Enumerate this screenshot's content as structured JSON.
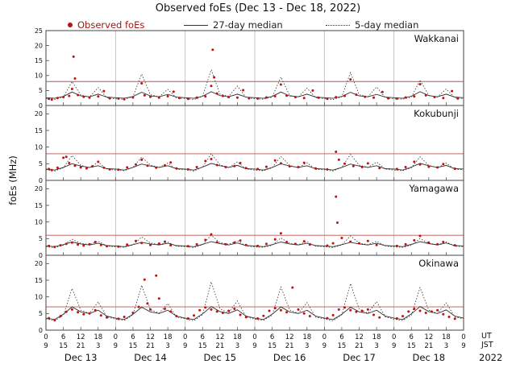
{
  "title": "Observed foEs (Dec 13 - Dec 18, 2022)",
  "legend": {
    "observed": "Observed foEs",
    "median27": "27-day median",
    "median5": "5-day median"
  },
  "axis": {
    "ylabel": "foEs (MHz)",
    "ut_label": "UT",
    "jst_label": "JST",
    "year": "2022",
    "days": [
      "Dec 13",
      "Dec 14",
      "Dec 15",
      "Dec 16",
      "Dec 17",
      "Dec 18"
    ],
    "ut_ticks": [
      "0",
      "6",
      "12",
      "18",
      "0",
      "6",
      "12",
      "18",
      "0",
      "6",
      "12",
      "18",
      "0",
      "6",
      "12",
      "18",
      "0",
      "6",
      "12",
      "18",
      "0",
      "6",
      "12",
      "18",
      "0"
    ],
    "jst_ticks": [
      "9",
      "15",
      "21",
      "3",
      "9",
      "15",
      "21",
      "3",
      "9",
      "15",
      "21",
      "3",
      "9",
      "15",
      "21",
      "3",
      "9",
      "15",
      "21",
      "3",
      "9",
      "15",
      "21",
      "3",
      "9"
    ]
  },
  "colors": {
    "observed": "#c01010",
    "median": "#303030",
    "threshold": "#c05050",
    "grid": "#b5b5b5",
    "border": "#444444"
  },
  "chart_data": [
    {
      "type": "scatter",
      "name": "Wakkanai",
      "ymax": 25,
      "yticks": [
        0,
        5,
        10,
        15,
        20,
        25
      ],
      "threshold": 8,
      "x_step": 3,
      "median5": [
        2.3,
        2.0,
        2.8,
        8.0,
        3.5,
        2.8,
        6.0,
        2.6,
        2.2,
        2.1,
        2.9,
        10.5,
        3.6,
        2.9,
        5.4,
        2.5,
        2.3,
        2.0,
        3.0,
        12.0,
        3.8,
        3.0,
        6.5,
        2.7,
        2.2,
        2.1,
        2.8,
        9.5,
        3.4,
        2.8,
        5.8,
        2.6,
        2.3,
        2.0,
        2.9,
        11.0,
        3.6,
        2.9,
        6.2,
        2.6,
        2.2,
        2.1,
        2.8,
        8.5,
        3.4,
        2.8,
        5.5,
        2.5,
        2.3
      ],
      "median27": [
        2.6,
        2.4,
        3.0,
        4.5,
        3.2,
        2.9,
        3.8,
        2.8,
        2.6,
        2.4,
        3.0,
        4.4,
        3.2,
        2.9,
        3.7,
        2.8,
        2.6,
        2.4,
        3.1,
        4.6,
        3.3,
        2.9,
        3.8,
        2.8,
        2.6,
        2.4,
        3.0,
        4.5,
        3.2,
        2.9,
        3.8,
        2.8,
        2.6,
        2.4,
        3.0,
        4.4,
        3.2,
        2.9,
        3.7,
        2.8,
        2.6,
        2.4,
        3.1,
        4.6,
        3.3,
        2.9,
        3.8,
        2.8,
        2.6
      ],
      "observed": [
        [
          1,
          2.2
        ],
        [
          2,
          2.0
        ],
        [
          4,
          2.5
        ],
        [
          6,
          2.8
        ],
        [
          8,
          3.2
        ],
        [
          9,
          5.5
        ],
        [
          9.5,
          16.3
        ],
        [
          10,
          9.0
        ],
        [
          11,
          3.5
        ],
        [
          13,
          2.9
        ],
        [
          15,
          2.6
        ],
        [
          18,
          3.0
        ],
        [
          20,
          4.8
        ],
        [
          22,
          2.4
        ],
        [
          25,
          2.3
        ],
        [
          27,
          2.1
        ],
        [
          30,
          2.7
        ],
        [
          33,
          7.4
        ],
        [
          34,
          3.4
        ],
        [
          36,
          2.9
        ],
        [
          39,
          2.6
        ],
        [
          42,
          3.1
        ],
        [
          44,
          4.6
        ],
        [
          46,
          2.5
        ],
        [
          49,
          2.2
        ],
        [
          52,
          2.6
        ],
        [
          55,
          3.0
        ],
        [
          57,
          6.5
        ],
        [
          57.5,
          18.6
        ],
        [
          58,
          9.4
        ],
        [
          59,
          4.0
        ],
        [
          61,
          3.2
        ],
        [
          63,
          2.8
        ],
        [
          66,
          2.6
        ],
        [
          68,
          5.1
        ],
        [
          70,
          2.4
        ],
        [
          73,
          2.3
        ],
        [
          76,
          2.7
        ],
        [
          79,
          3.1
        ],
        [
          81,
          7.0
        ],
        [
          83,
          3.3
        ],
        [
          86,
          2.8
        ],
        [
          89,
          2.5
        ],
        [
          92,
          5.0
        ],
        [
          94,
          2.6
        ],
        [
          97,
          2.2
        ],
        [
          100,
          2.8
        ],
        [
          103,
          3.2
        ],
        [
          105,
          8.7
        ],
        [
          107,
          3.6
        ],
        [
          110,
          2.9
        ],
        [
          113,
          2.6
        ],
        [
          116,
          4.5
        ],
        [
          118,
          2.4
        ],
        [
          121,
          2.3
        ],
        [
          124,
          2.7
        ],
        [
          127,
          3.0
        ],
        [
          129,
          7.1
        ],
        [
          131,
          3.4
        ],
        [
          134,
          2.8
        ],
        [
          137,
          2.5
        ],
        [
          140,
          4.8
        ],
        [
          142,
          2.3
        ]
      ]
    },
    {
      "type": "scatter",
      "name": "Kokubunji",
      "ymax": 22.5,
      "yticks": [
        0,
        5,
        10,
        15,
        20
      ],
      "threshold": 8,
      "x_step": 3,
      "median5": [
        3.2,
        2.8,
        3.8,
        7.5,
        4.5,
        3.8,
        5.5,
        3.4,
        3.1,
        2.9,
        3.9,
        7.0,
        4.6,
        3.9,
        5.2,
        3.3,
        3.2,
        2.8,
        4.0,
        8.0,
        4.7,
        3.8,
        5.6,
        3.4,
        3.1,
        2.9,
        3.8,
        7.2,
        4.5,
        3.8,
        5.3,
        3.3,
        3.2,
        2.8,
        3.9,
        7.8,
        4.6,
        3.9,
        5.5,
        3.4,
        3.1,
        2.9,
        3.8,
        7.1,
        4.5,
        3.8,
        5.2,
        3.3,
        3.2
      ],
      "median27": [
        3.4,
        3.1,
        3.9,
        5.0,
        4.3,
        3.9,
        4.4,
        3.5,
        3.4,
        3.1,
        3.9,
        4.9,
        4.3,
        3.9,
        4.4,
        3.5,
        3.4,
        3.1,
        4.0,
        5.1,
        4.4,
        3.9,
        4.5,
        3.5,
        3.4,
        3.1,
        3.9,
        5.0,
        4.3,
        3.9,
        4.4,
        3.5,
        3.4,
        3.1,
        3.9,
        4.9,
        4.3,
        3.9,
        4.4,
        3.5,
        3.4,
        3.1,
        4.0,
        5.1,
        4.4,
        3.9,
        4.5,
        3.5,
        3.4
      ],
      "observed": [
        [
          1,
          3.4
        ],
        [
          2,
          3.1
        ],
        [
          4,
          3.8
        ],
        [
          6,
          6.8
        ],
        [
          7,
          7.1
        ],
        [
          8,
          5.2
        ],
        [
          10,
          4.4
        ],
        [
          12,
          3.9
        ],
        [
          14,
          3.6
        ],
        [
          16,
          4.2
        ],
        [
          18,
          5.6
        ],
        [
          20,
          3.8
        ],
        [
          22,
          3.3
        ],
        [
          25,
          3.2
        ],
        [
          28,
          3.9
        ],
        [
          31,
          4.8
        ],
        [
          33,
          6.2
        ],
        [
          35,
          4.4
        ],
        [
          38,
          3.8
        ],
        [
          41,
          4.5
        ],
        [
          43,
          5.4
        ],
        [
          45,
          3.6
        ],
        [
          49,
          3.3
        ],
        [
          52,
          4.0
        ],
        [
          55,
          5.8
        ],
        [
          57,
          6.4
        ],
        [
          59,
          4.6
        ],
        [
          62,
          4.0
        ],
        [
          65,
          4.3
        ],
        [
          67,
          5.2
        ],
        [
          69,
          3.7
        ],
        [
          73,
          3.4
        ],
        [
          76,
          4.1
        ],
        [
          79,
          6.0
        ],
        [
          81,
          5.1
        ],
        [
          84,
          4.2
        ],
        [
          87,
          4.0
        ],
        [
          89,
          5.3
        ],
        [
          93,
          3.6
        ],
        [
          97,
          3.3
        ],
        [
          100,
          8.6
        ],
        [
          101,
          6.2
        ],
        [
          103,
          5.0
        ],
        [
          106,
          4.3
        ],
        [
          109,
          4.0
        ],
        [
          111,
          5.1
        ],
        [
          115,
          3.7
        ],
        [
          121,
          3.4
        ],
        [
          124,
          4.0
        ],
        [
          127,
          5.6
        ],
        [
          129,
          4.8
        ],
        [
          132,
          4.1
        ],
        [
          135,
          3.9
        ],
        [
          137,
          4.9
        ],
        [
          141,
          3.5
        ]
      ]
    },
    {
      "type": "scatter",
      "name": "Yamagawa",
      "ymax": 22.5,
      "yticks": [
        0,
        5,
        10,
        15,
        20
      ],
      "threshold": 6,
      "x_step": 3,
      "median5": [
        2.6,
        2.3,
        3.0,
        4.8,
        3.6,
        3.2,
        4.2,
        2.8,
        2.5,
        2.4,
        3.1,
        5.5,
        3.7,
        3.2,
        4.0,
        2.7,
        2.6,
        2.3,
        3.2,
        6.0,
        3.8,
        3.3,
        4.3,
        2.8,
        2.5,
        2.4,
        3.0,
        5.2,
        3.6,
        3.2,
        4.1,
        2.7,
        2.6,
        2.3,
        3.1,
        5.8,
        3.7,
        3.2,
        4.2,
        2.8,
        2.5,
        2.4,
        3.0,
        5.0,
        3.6,
        3.2,
        4.0,
        2.7,
        2.6
      ],
      "median27": [
        2.8,
        2.6,
        3.2,
        4.0,
        3.4,
        3.1,
        3.6,
        2.9,
        2.8,
        2.6,
        3.2,
        3.9,
        3.4,
        3.1,
        3.6,
        2.9,
        2.8,
        2.6,
        3.3,
        4.1,
        3.5,
        3.1,
        3.7,
        2.9,
        2.8,
        2.6,
        3.2,
        4.0,
        3.4,
        3.1,
        3.6,
        2.9,
        2.8,
        2.6,
        3.2,
        3.9,
        3.4,
        3.1,
        3.6,
        2.9,
        2.8,
        2.6,
        3.3,
        4.1,
        3.5,
        3.1,
        3.7,
        2.9,
        2.8
      ],
      "observed": [
        [
          1,
          2.8
        ],
        [
          3,
          2.5
        ],
        [
          5,
          3.0
        ],
        [
          7,
          3.4
        ],
        [
          9,
          3.8
        ],
        [
          11,
          3.2
        ],
        [
          13,
          2.9
        ],
        [
          15,
          3.3
        ],
        [
          17,
          4.0
        ],
        [
          19,
          3.1
        ],
        [
          21,
          2.7
        ],
        [
          25,
          2.6
        ],
        [
          28,
          3.2
        ],
        [
          31,
          4.3
        ],
        [
          33,
          3.7
        ],
        [
          36,
          3.1
        ],
        [
          39,
          3.5
        ],
        [
          41,
          4.1
        ],
        [
          43,
          3.0
        ],
        [
          49,
          2.7
        ],
        [
          52,
          3.3
        ],
        [
          55,
          4.6
        ],
        [
          57,
          6.3
        ],
        [
          59,
          3.9
        ],
        [
          62,
          3.3
        ],
        [
          65,
          3.8
        ],
        [
          67,
          4.4
        ],
        [
          69,
          3.1
        ],
        [
          73,
          2.8
        ],
        [
          76,
          3.4
        ],
        [
          79,
          4.8
        ],
        [
          81,
          6.6
        ],
        [
          83,
          4.0
        ],
        [
          86,
          3.4
        ],
        [
          89,
          4.2
        ],
        [
          91,
          3.2
        ],
        [
          97,
          2.9
        ],
        [
          99,
          3.6
        ],
        [
          100,
          17.6
        ],
        [
          100.5,
          9.8
        ],
        [
          102,
          5.2
        ],
        [
          105,
          4.1
        ],
        [
          108,
          3.6
        ],
        [
          111,
          4.3
        ],
        [
          114,
          3.1
        ],
        [
          121,
          2.8
        ],
        [
          124,
          3.3
        ],
        [
          127,
          4.5
        ],
        [
          129,
          5.8
        ],
        [
          132,
          3.8
        ],
        [
          135,
          3.3
        ],
        [
          137,
          4.0
        ],
        [
          141,
          3.0
        ]
      ]
    },
    {
      "type": "scatter",
      "name": "Okinawa",
      "ymax": 22.5,
      "yticks": [
        0,
        5,
        10,
        15,
        20
      ],
      "threshold": 7,
      "x_step": 3,
      "median5": [
        3.4,
        2.8,
        4.5,
        12.5,
        6.0,
        5.0,
        8.5,
        4.0,
        3.3,
        2.9,
        4.6,
        13.5,
        6.2,
        5.1,
        8.0,
        3.9,
        3.4,
        2.8,
        4.7,
        14.5,
        6.4,
        5.2,
        8.8,
        4.0,
        3.3,
        2.9,
        4.5,
        13.0,
        6.1,
        5.0,
        8.3,
        3.9,
        3.4,
        2.8,
        4.6,
        14.0,
        6.3,
        5.1,
        8.6,
        4.0,
        3.3,
        2.9,
        4.5,
        12.8,
        6.0,
        5.0,
        8.2,
        3.9,
        3.4
      ],
      "median27": [
        3.6,
        3.2,
        4.8,
        7.0,
        5.5,
        5.0,
        6.0,
        4.2,
        3.6,
        3.2,
        4.8,
        6.9,
        5.5,
        5.0,
        6.0,
        4.2,
        3.6,
        3.2,
        4.9,
        7.1,
        5.6,
        5.0,
        6.1,
        4.2,
        3.6,
        3.2,
        4.8,
        7.0,
        5.5,
        5.0,
        6.0,
        4.2,
        3.6,
        3.2,
        4.8,
        6.9,
        5.5,
        5.0,
        6.0,
        4.2,
        3.6,
        3.2,
        4.9,
        7.1,
        5.6,
        5.0,
        6.1,
        4.2,
        3.6
      ],
      "observed": [
        [
          1,
          3.6
        ],
        [
          3,
          3.0
        ],
        [
          5,
          4.2
        ],
        [
          7,
          5.5
        ],
        [
          9,
          6.2
        ],
        [
          11,
          5.4
        ],
        [
          13,
          4.8
        ],
        [
          15,
          5.0
        ],
        [
          17,
          6.0
        ],
        [
          19,
          4.4
        ],
        [
          21,
          3.8
        ],
        [
          25,
          3.4
        ],
        [
          27,
          4.0
        ],
        [
          30,
          5.2
        ],
        [
          32,
          7.0
        ],
        [
          34,
          15.2
        ],
        [
          35,
          8.0
        ],
        [
          36,
          6.2
        ],
        [
          38,
          16.4
        ],
        [
          39,
          9.5
        ],
        [
          41,
          6.4
        ],
        [
          43,
          5.6
        ],
        [
          45,
          4.2
        ],
        [
          49,
          3.5
        ],
        [
          51,
          4.4
        ],
        [
          53,
          6.0
        ],
        [
          55,
          6.8
        ],
        [
          57,
          6.2
        ],
        [
          59,
          5.6
        ],
        [
          61,
          5.2
        ],
        [
          63,
          5.8
        ],
        [
          65,
          6.4
        ],
        [
          67,
          4.6
        ],
        [
          69,
          3.9
        ],
        [
          73,
          3.5
        ],
        [
          75,
          4.3
        ],
        [
          77,
          5.8
        ],
        [
          79,
          6.6
        ],
        [
          81,
          6.0
        ],
        [
          83,
          5.4
        ],
        [
          85,
          12.8
        ],
        [
          87,
          6.2
        ],
        [
          89,
          5.0
        ],
        [
          91,
          4.2
        ],
        [
          97,
          3.6
        ],
        [
          99,
          4.5
        ],
        [
          101,
          6.2
        ],
        [
          103,
          6.8
        ],
        [
          105,
          6.0
        ],
        [
          107,
          5.5
        ],
        [
          109,
          5.8
        ],
        [
          111,
          6.2
        ],
        [
          113,
          4.6
        ],
        [
          115,
          3.8
        ],
        [
          121,
          3.5
        ],
        [
          123,
          4.2
        ],
        [
          125,
          5.6
        ],
        [
          127,
          6.4
        ],
        [
          129,
          5.8
        ],
        [
          131,
          5.2
        ],
        [
          133,
          5.6
        ],
        [
          135,
          6.0
        ],
        [
          137,
          4.8
        ],
        [
          139,
          4.0
        ],
        [
          141,
          3.4
        ]
      ]
    }
  ]
}
